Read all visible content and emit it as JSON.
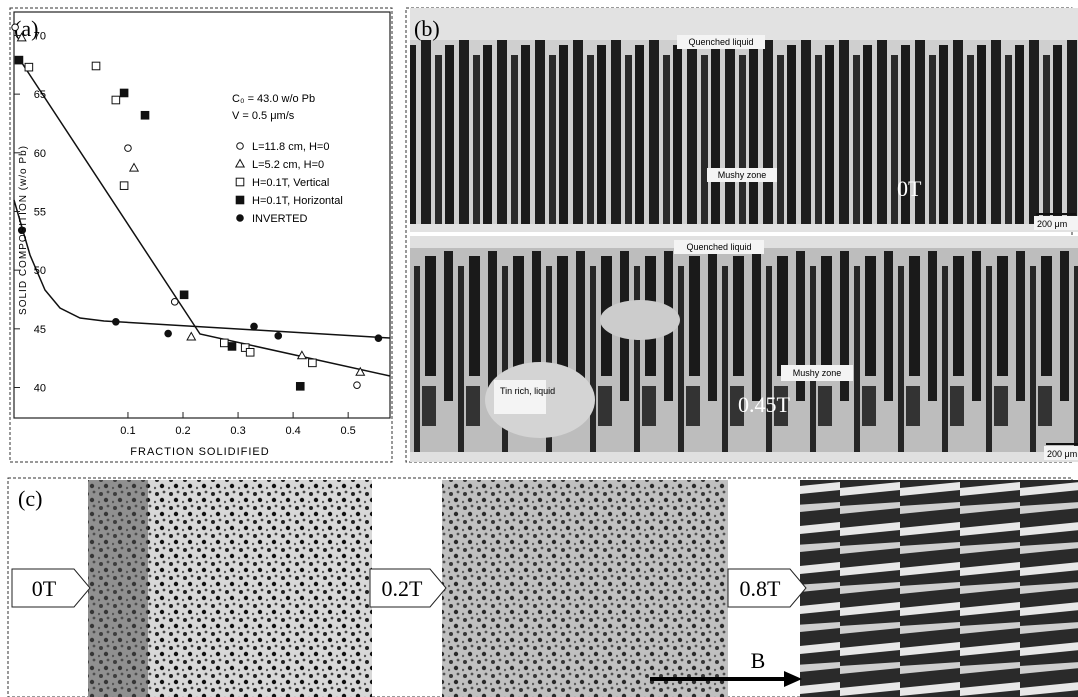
{
  "chart_data": {
    "type": "scatter",
    "xlabel": "FRACTION SOLIDIFIED",
    "ylabel": "SOLID COMPOSITION (w/o Pb)",
    "annotations": [
      "C₀ = 43.0 w/o Pb",
      "V = 0.5 μm/s"
    ],
    "xlim": [
      -0.107,
      0.576
    ],
    "ylim": [
      37.4,
      72
    ],
    "xticks": [
      0.1,
      0.2,
      0.3,
      0.4,
      0.5
    ],
    "yticks": [
      40,
      45,
      50,
      55,
      60,
      65,
      70
    ],
    "legend": "upper right",
    "series": [
      {
        "name": "L=11.8 cm, H=0",
        "marker": "open-circle",
        "color": "#111",
        "x": [
          -0.105,
          0.1,
          0.185,
          0.516
        ],
        "values": [
          70.7,
          60.4,
          47.3,
          40.2
        ]
      },
      {
        "name": "L=5.2 cm, H=0",
        "marker": "open-triangle",
        "color": "#111",
        "x": [
          -0.093,
          0.111,
          0.215,
          0.416,
          0.522
        ],
        "values": [
          69.8,
          58.7,
          44.3,
          42.7,
          41.3
        ]
      },
      {
        "name": "H=0.1T, Vertical",
        "marker": "open-square",
        "color": "#111",
        "x": [
          -0.08,
          0.042,
          0.078,
          0.093,
          0.275,
          0.313,
          0.322,
          0.435
        ],
        "values": [
          67.3,
          67.4,
          64.5,
          57.2,
          43.8,
          43.4,
          43.0,
          42.1
        ]
      },
      {
        "name": "H=0.1T, Horizontal",
        "marker": "filled-square",
        "color": "#111",
        "x": [
          -0.098,
          0.093,
          0.131,
          0.202,
          0.289,
          0.413
        ],
        "values": [
          67.9,
          65.1,
          63.2,
          47.9,
          43.5,
          40.1
        ]
      },
      {
        "name": "INVERTED",
        "marker": "filled-circle",
        "color": "#111",
        "x": [
          -0.093,
          0.078,
          0.173,
          0.329,
          0.373,
          0.555
        ],
        "values": [
          53.4,
          45.6,
          44.6,
          45.2,
          44.4,
          44.2
        ]
      }
    ]
  },
  "figure": {
    "panel_labels": [
      "(a)",
      "(b)",
      "(c)"
    ],
    "b_top": {
      "region_labels": [
        "Quenched liquid",
        "Mushy zone"
      ],
      "field": "0T",
      "scale": "200 μm"
    },
    "b_bottom": {
      "region_labels": [
        "Quenched liquid",
        "Tin rich, liquid",
        "Mushy zone"
      ],
      "field": "0.45T",
      "scale": "200 μm"
    },
    "c_fields": [
      "0T",
      "0.2T",
      "0.8T"
    ],
    "c_arrow": "B"
  }
}
